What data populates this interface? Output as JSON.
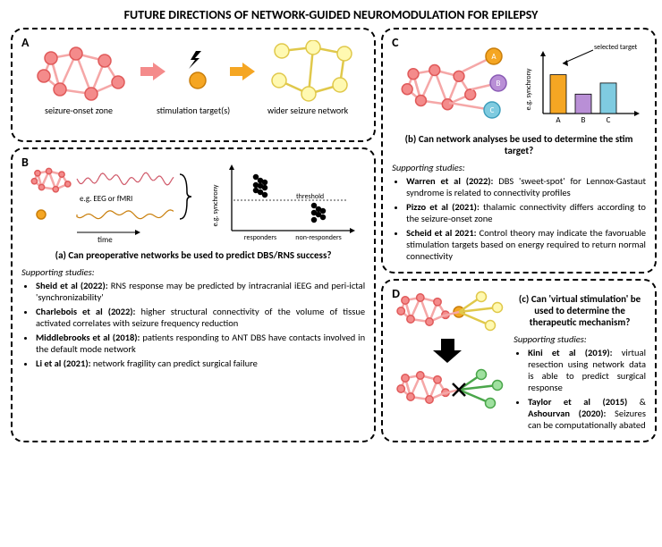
{
  "title": "FUTURE DIRECTIONS OF NETWORK-GUIDED NEUROMODULATION FOR EPILEPSY",
  "colors": {
    "soz_node_fill": "#f48b8b",
    "soz_node_stroke": "#e05a5a",
    "edge": "#f5a7a7",
    "stim_fill": "#f5a623",
    "stim_stroke": "#c97e0a",
    "wider_fill": "#fff9b1",
    "wider_stroke": "#e0c84a",
    "arrow1": "#f48b8b",
    "arrow2": "#f5a623",
    "bolt": "#000000",
    "nodeA_fill": "#f5a623",
    "nodeA_stroke": "#c97e0a",
    "nodeB_fill": "#b98fd6",
    "nodeB_stroke": "#8a5bb5",
    "nodeC_fill": "#7fcbe0",
    "nodeC_stroke": "#3e9ebc",
    "bar_colors": [
      "#f5a623",
      "#b98fd6",
      "#7fcbe0"
    ],
    "green_fill": "#9fe09f",
    "green_stroke": "#4aa64a",
    "sig_soz": "#d05a6a",
    "sig_stim": "#c97e0a",
    "dot": "#000000",
    "axis": "#000000"
  },
  "panelA": {
    "label": "A",
    "cap1": "seizure-onset zone",
    "cap2": "stimulation target(s)",
    "cap3": "wider seizure network"
  },
  "panelB": {
    "label": "B",
    "sig_label": "e.g. EEG or fMRI",
    "xlabel_time": "time",
    "ylabel": "e.g. synchrony",
    "thresh": "threshold",
    "cat1": "responders",
    "cat2": "non-responders",
    "question": "(a) Can preoperative networks be used to predict DBS/RNS success?",
    "support": "Supporting studies:",
    "s1b": "Sheid et al (2022):",
    "s1": " RNS response may be predicted by intracranial iEEG and peri-ictal 'synchronizability'",
    "s2b": "Charlebois et al (2022):",
    "s2": " higher structural connectivity of the volume of tissue activated correlates with seizure frequency reduction",
    "s3b": "Middlebrooks et al (2018):",
    "s3": " patients responding to ANT DBS have contacts involved in the default mode network",
    "s4b": "Li et al (2021):",
    "s4": " network fragility can predict surgical failure"
  },
  "panelC": {
    "label": "C",
    "sel": "selected target",
    "ylabel": "e.g. synchrony",
    "bars": {
      "cats": [
        "A",
        "B",
        "C"
      ],
      "vals": [
        70,
        35,
        55
      ]
    },
    "question": "(b) Can network analyses be used to determine the stim target?",
    "support": "Supporting studies:",
    "s1b": "Warren et al (2022):",
    "s1": " DBS 'sweet-spot' for Lennox-Gastaut syndrome is related to connectivity profiles",
    "s2b": "Pizzo et al (2021):",
    "s2": " thalamic connectivity differs according to the seizure-onset zone",
    "s3b": "Scheid et al 2021:",
    "s3": " Control theory may indicate the favoruable stimulation targets based on energy required to return normal connectivity"
  },
  "panelD": {
    "label": "D",
    "question": "(c) Can 'virtual stimulation' be used to determine the therapeutic mechanism?",
    "support": "Supporting studies:",
    "s1b": "Kini et al (2019):",
    "s1": "  virtual resection using network data is able to predict surgical response",
    "s2b": "Taylor et al (2015)",
    "s2amp": " & ",
    "s3b": "Ashourvan (2020):",
    "s3": " Seizures can be computationally abated"
  }
}
